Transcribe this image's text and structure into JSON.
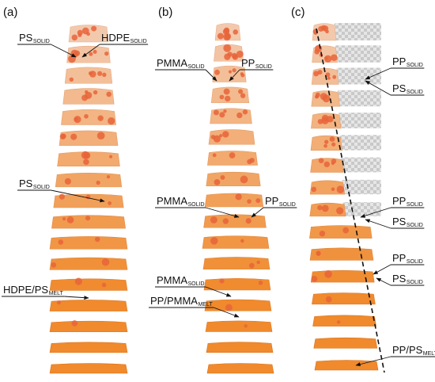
{
  "panels": [
    {
      "label": "(a)",
      "annotations": [
        {
          "text": "PS",
          "sub": "SOLID"
        },
        {
          "text": "HDPE",
          "sub": "SOLID"
        },
        {
          "text": "PS",
          "sub": "SOLID"
        },
        {
          "text": "HDPE/PS",
          "sub": "MELT"
        }
      ]
    },
    {
      "label": "(b)",
      "annotations": [
        {
          "text": "PMMA",
          "sub": "SOLID"
        },
        {
          "text": "PP",
          "sub": "SOLID"
        },
        {
          "text": "PMMA",
          "sub": "SOLID"
        },
        {
          "text": "PP",
          "sub": "SOLID"
        },
        {
          "text": "PMMA",
          "sub": "SOLID"
        },
        {
          "text": "PP/PMMA",
          "sub": "MELT"
        }
      ]
    },
    {
      "label": "(c)",
      "annotations": [
        {
          "text": "PP",
          "sub": "SOLID"
        },
        {
          "text": "PS",
          "sub": "SOLID"
        },
        {
          "text": "PP",
          "sub": "SOLID"
        },
        {
          "text": "PS",
          "sub": "SOLID"
        },
        {
          "text": "PP",
          "sub": "SOLID"
        },
        {
          "text": "PS",
          "sub": "SOLID"
        },
        {
          "text": "PP/PS",
          "sub": "MELT"
        }
      ]
    }
  ]
}
